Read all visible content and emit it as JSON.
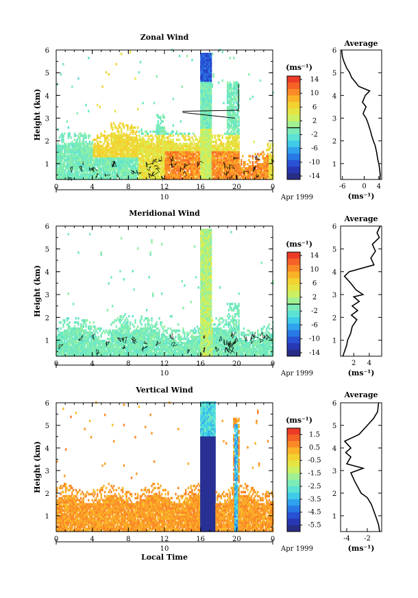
{
  "chart_data": [
    {
      "type": "heatmap",
      "title": "Zonal Wind",
      "ylabel": "Height (km)",
      "xlabel": "",
      "x_ticks": [
        "0",
        "4",
        "8",
        "12",
        "16",
        "20",
        "0"
      ],
      "y_ticks": [
        "1",
        "2",
        "3",
        "4",
        "5",
        "6"
      ],
      "xlim": [
        0,
        24
      ],
      "ylim": [
        0.3,
        6
      ],
      "date_axis": {
        "label": "10",
        "suffix": "Apr 1999"
      },
      "colorbar": {
        "unit": "(ms⁻¹)",
        "range": [
          -15,
          15
        ],
        "zero_line": 0,
        "ticks": [
          "14",
          "10",
          "6",
          "2",
          "-2",
          "-6",
          "-10",
          "-14"
        ],
        "tick_values": [
          14,
          10,
          6,
          2,
          -2,
          -6,
          -10,
          -14
        ]
      },
      "profile": {
        "title": "Average",
        "xlabel": "(ms⁻¹)",
        "x_ticks": [
          "-6",
          "0",
          "4"
        ],
        "x_tick_values": [
          -6,
          0,
          4
        ],
        "xlim": [
          -6.5,
          4.8
        ],
        "y_ticks": [
          "1",
          "2",
          "3",
          "4",
          "5",
          "6"
        ],
        "heights": [
          0.3,
          0.5,
          0.8,
          1.0,
          1.2,
          1.5,
          1.8,
          2.0,
          2.2,
          2.5,
          2.8,
          3.0,
          3.2,
          3.5,
          3.7,
          4.0,
          4.2,
          4.4,
          4.6,
          4.8,
          5.0,
          5.2,
          5.5,
          5.7,
          6.0
        ],
        "values": [
          4.3,
          4.4,
          4.2,
          4.0,
          3.7,
          3.4,
          3.0,
          2.5,
          2.1,
          1.6,
          1.0,
          0.5,
          -0.3,
          0.5,
          -0.5,
          0.3,
          1.5,
          -1.5,
          -2.5,
          -3.5,
          -4.0,
          -4.8,
          -5.6,
          -6.0,
          -6.2
        ]
      }
    },
    {
      "type": "heatmap",
      "title": "Meridional Wind",
      "ylabel": "Height (km)",
      "xlabel": "",
      "x_ticks": [
        "0",
        "4",
        "8",
        "12",
        "16",
        "20",
        "0"
      ],
      "y_ticks": [
        "1",
        "2",
        "3",
        "4",
        "5",
        "6"
      ],
      "xlim": [
        0,
        24
      ],
      "ylim": [
        0.3,
        6
      ],
      "date_axis": {
        "label": "10",
        "suffix": "Apr 1999"
      },
      "colorbar": {
        "unit": "(ms⁻¹)",
        "range": [
          -15,
          15
        ],
        "zero_line": 0,
        "ticks": [
          "14",
          "10",
          "6",
          "2",
          "-2",
          "-6",
          "-10",
          "-14"
        ],
        "tick_values": [
          14,
          10,
          6,
          2,
          -2,
          -6,
          -10,
          -14
        ]
      },
      "profile": {
        "title": "Average",
        "xlabel": "(ms⁻¹)",
        "x_ticks": [
          "2",
          "4"
        ],
        "x_tick_values": [
          2,
          4
        ],
        "xlim": [
          0.3,
          5.6
        ],
        "y_ticks": [
          "1",
          "2",
          "3",
          "4",
          "5",
          "6"
        ],
        "heights": [
          0.3,
          0.5,
          0.8,
          1.0,
          1.3,
          1.6,
          1.9,
          2.1,
          2.3,
          2.5,
          2.7,
          2.9,
          3.0,
          3.2,
          3.5,
          3.8,
          4.0,
          4.3,
          4.6,
          4.9,
          5.2,
          5.5,
          5.7,
          6.0
        ],
        "values": [
          0.6,
          0.8,
          1.1,
          1.2,
          1.6,
          1.8,
          2.4,
          1.7,
          2.5,
          1.8,
          2.7,
          2.0,
          3.2,
          2.3,
          1.6,
          0.8,
          1.4,
          4.6,
          4.2,
          4.8,
          4.4,
          5.3,
          5.0,
          5.4
        ]
      }
    },
    {
      "type": "heatmap",
      "title": "Vertical Wind",
      "ylabel": "Height (km)",
      "xlabel": "Local Time",
      "x_ticks": [
        "0",
        "4",
        "8",
        "12",
        "16",
        "20",
        "0"
      ],
      "y_ticks": [
        "1",
        "2",
        "3",
        "4",
        "5",
        "6"
      ],
      "xlim": [
        0,
        24
      ],
      "ylim": [
        0.3,
        6
      ],
      "date_axis": {
        "label": "10",
        "suffix": "Apr 1999"
      },
      "colorbar": {
        "unit": "(ms⁻¹)",
        "range": [
          -6,
          2
        ],
        "zero_line": null,
        "ticks": [
          "1.5",
          "0.5",
          "-0.5",
          "-1.5",
          "-2.5",
          "-3.5",
          "-4.5",
          "-5.5"
        ],
        "tick_values": [
          1.5,
          0.5,
          -0.5,
          -1.5,
          -2.5,
          -3.5,
          -4.5,
          -5.5
        ]
      },
      "profile": {
        "title": "Average",
        "xlabel": "(ms⁻¹)",
        "x_ticks": [
          "-4",
          "-2"
        ],
        "x_tick_values": [
          -4,
          -2
        ],
        "xlim": [
          -4.6,
          -0.6
        ],
        "y_ticks": [
          "1",
          "2",
          "3",
          "4",
          "5",
          "6"
        ],
        "heights": [
          0.3,
          0.6,
          1.0,
          1.5,
          1.8,
          2.0,
          2.5,
          2.9,
          3.1,
          3.3,
          3.6,
          3.8,
          4.0,
          4.3,
          4.6,
          5.0,
          5.3,
          5.6,
          6.0
        ],
        "values": [
          -0.8,
          -0.9,
          -1.2,
          -1.6,
          -2.0,
          -2.6,
          -3.2,
          -3.6,
          -2.4,
          -4.0,
          -3.6,
          -4.1,
          -3.6,
          -4.2,
          -2.8,
          -2.0,
          -1.4,
          -1.0,
          -0.9
        ]
      }
    }
  ]
}
